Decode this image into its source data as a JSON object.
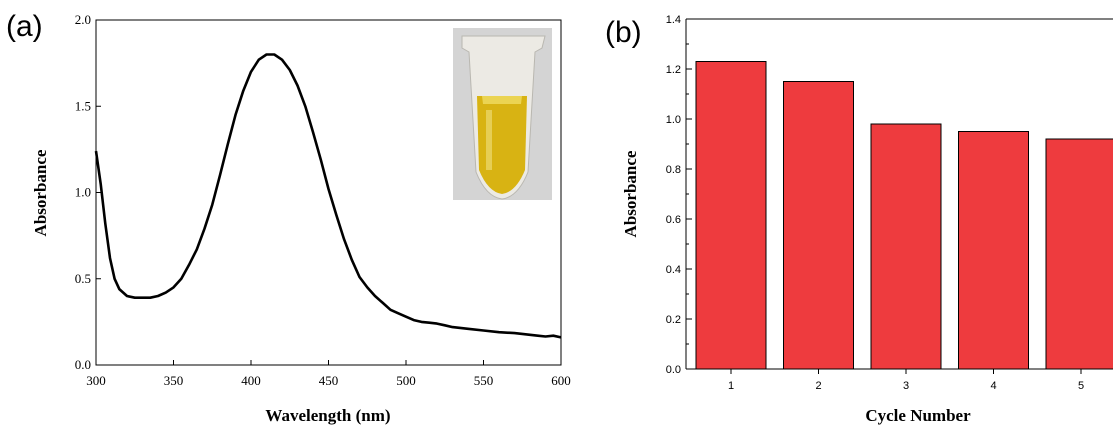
{
  "colors": {
    "bar_fill": "#ee3b3e",
    "line": "#000000"
  },
  "inset_photo": {
    "icon": "yellow-solution-vial-photo",
    "liquid_color": "#d8b313",
    "background_color": "#d4d4d4"
  },
  "chart_data": [
    {
      "panel_label": "(a)",
      "type": "line",
      "xlabel": "Wavelength (nm)",
      "ylabel": "Absorbance",
      "xlim": [
        300,
        600
      ],
      "ylim": [
        0.0,
        2.0
      ],
      "x_ticks": [
        "300",
        "350",
        "400",
        "450",
        "500",
        "550",
        "600"
      ],
      "y_ticks": [
        "0.0",
        "0.5",
        "1.0",
        "1.5",
        "2.0"
      ],
      "grid": false,
      "series": [
        {
          "x": [
            300,
            303,
            306,
            309,
            312,
            315,
            320,
            325,
            330,
            335,
            340,
            345,
            350,
            355,
            360,
            365,
            370,
            375,
            380,
            385,
            390,
            395,
            400,
            405,
            410,
            415,
            420,
            425,
            430,
            435,
            440,
            445,
            450,
            455,
            460,
            465,
            470,
            475,
            480,
            485,
            490,
            495,
            500,
            505,
            510,
            515,
            520,
            525,
            530,
            540,
            550,
            560,
            570,
            575,
            580,
            585,
            590,
            595,
            600
          ],
          "y": [
            1.24,
            1.05,
            0.82,
            0.62,
            0.5,
            0.44,
            0.4,
            0.39,
            0.39,
            0.39,
            0.4,
            0.42,
            0.45,
            0.5,
            0.58,
            0.67,
            0.79,
            0.93,
            1.1,
            1.28,
            1.45,
            1.59,
            1.7,
            1.77,
            1.8,
            1.8,
            1.77,
            1.71,
            1.62,
            1.5,
            1.35,
            1.19,
            1.02,
            0.87,
            0.73,
            0.61,
            0.51,
            0.45,
            0.4,
            0.36,
            0.32,
            0.3,
            0.28,
            0.26,
            0.25,
            0.245,
            0.24,
            0.23,
            0.22,
            0.21,
            0.2,
            0.19,
            0.185,
            0.18,
            0.175,
            0.17,
            0.165,
            0.17,
            0.16
          ]
        }
      ]
    },
    {
      "panel_label": "(b)",
      "type": "bar",
      "xlabel": "Cycle Number",
      "ylabel": "Absorbance",
      "categories": [
        "1",
        "2",
        "3",
        "4",
        "5"
      ],
      "values": [
        1.23,
        1.15,
        0.98,
        0.95,
        0.92
      ],
      "ylim": [
        0.0,
        1.4
      ],
      "y_ticks": [
        "0.0",
        "0.2",
        "0.4",
        "0.6",
        "0.8",
        "1.0",
        "1.2",
        "1.4"
      ],
      "grid": false
    }
  ]
}
